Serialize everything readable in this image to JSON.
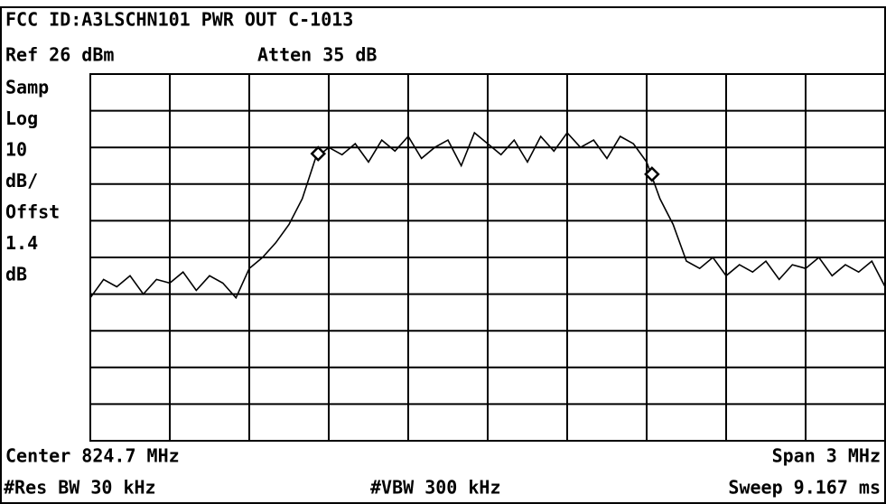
{
  "header": {
    "title": "FCC ID:A3LSCHN101 PWR OUT C-1013",
    "ref": "Ref 26 dBm",
    "atten": "Atten 35 dB"
  },
  "side_labels": [
    "Samp",
    "Log",
    "10",
    "dB/",
    "Offst",
    "1.4",
    "dB"
  ],
  "footer": {
    "center": "Center 824.7 MHz",
    "span": "Span 3 MHz",
    "res_bw": "#Res BW 30 kHz",
    "vbw": "#VBW 300 kHz",
    "sweep": "Sweep 9.167 ms"
  },
  "chart_data": {
    "type": "line",
    "color": "#000000",
    "grid": true,
    "xlim": [
      823.2,
      826.2
    ],
    "ylim": [
      -74,
      26
    ],
    "x": [
      823.2,
      823.25,
      823.3,
      823.35,
      823.4,
      823.45,
      823.5,
      823.55,
      823.6,
      823.65,
      823.7,
      823.75,
      823.8,
      823.85,
      823.9,
      823.95,
      824.0,
      824.05,
      824.1,
      824.15,
      824.2,
      824.25,
      824.3,
      824.35,
      824.4,
      824.45,
      824.5,
      824.55,
      824.6,
      824.65,
      824.7,
      824.75,
      824.8,
      824.85,
      824.9,
      824.95,
      825.0,
      825.05,
      825.1,
      825.15,
      825.2,
      825.25,
      825.3,
      825.35,
      825.4,
      825.45,
      825.5,
      825.55,
      825.6,
      825.65,
      825.7,
      825.75,
      825.8,
      825.85,
      825.9,
      825.95,
      826.0,
      826.05,
      826.1,
      826.15,
      826.2
    ],
    "values": [
      -35,
      -30,
      -32,
      -29,
      -34,
      -30,
      -31,
      -28,
      -33,
      -29,
      -31,
      -35,
      -27,
      -24,
      -20,
      -15,
      -8,
      3,
      6,
      4,
      7,
      2,
      8,
      5,
      9,
      3,
      6,
      8,
      1,
      10,
      7,
      4,
      8,
      2,
      9,
      5,
      10,
      6,
      8,
      3,
      9,
      7,
      2,
      -8,
      -15,
      -25,
      -27,
      -24,
      -29,
      -26,
      -28,
      -25,
      -30,
      -26,
      -27,
      -24,
      -29,
      -26,
      -28,
      -25,
      -32
    ],
    "markers": {
      "x": [
        824.06,
        825.32
      ],
      "values": [
        4.3,
        -1.3
      ]
    }
  }
}
